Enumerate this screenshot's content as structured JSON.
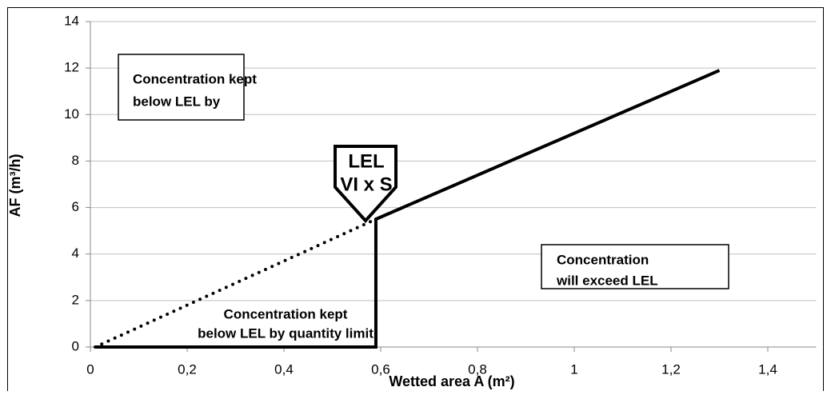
{
  "chart_data": {
    "type": "line",
    "x_label": "Wetted area A (m²)",
    "y_label": "AF (m³/h)",
    "xlim": [
      0,
      1.5
    ],
    "xticks": [
      0,
      {
        "value": 0.2,
        "label": "0,2"
      },
      {
        "value": 0.4,
        "label": "0,4"
      },
      {
        "value": 0.6,
        "label": "0,6"
      },
      {
        "value": 0.8,
        "label": "0,8"
      },
      1,
      {
        "value": 1.2,
        "label": "1,2"
      },
      {
        "value": 1.4,
        "label": "1,4"
      }
    ],
    "ylim": [
      0,
      14
    ],
    "yticks": [
      0,
      2,
      4,
      6,
      8,
      10,
      12,
      14
    ],
    "grid": true,
    "series": [
      {
        "style": "solid",
        "color": "#000000",
        "x": [
          0.01,
          0.59,
          0.59,
          1.3
        ],
        "values": [
          0,
          0,
          5.5,
          11.9
        ]
      },
      {
        "style": "dotted",
        "color": "#000000",
        "x": [
          0.01,
          0.59
        ],
        "values": [
          0,
          5.5
        ]
      }
    ],
    "annotations": [
      {
        "lines": [
          "Concentration kept",
          "below LEL by"
        ]
      },
      {
        "lines": [
          "LEL",
          "VI x S"
        ]
      },
      {
        "lines": [
          "Concentration",
          "will exceed LEL"
        ]
      },
      {
        "lines": [
          "Concentration kept",
          "below LEL by quantity limit"
        ]
      }
    ]
  }
}
